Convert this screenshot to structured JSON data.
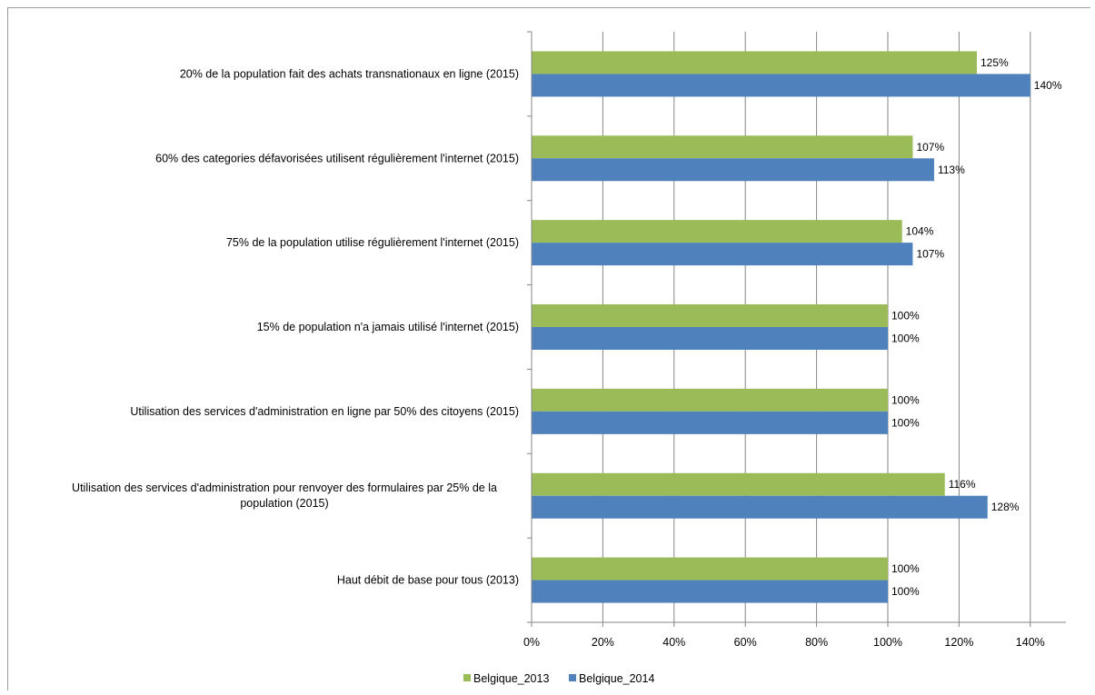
{
  "chart_data": {
    "type": "bar",
    "orientation": "horizontal",
    "categories": [
      "20% de la population fait des achats transnationaux en ligne (2015)",
      "60% des categories défavorisées utilisent régulièrement l'internet (2015)",
      "75% de la population utilise régulièrement l'internet (2015)",
      "15% de population n'a jamais utilisé l'internet (2015)",
      "Utilisation des services d'administration en ligne par 50% des citoyens (2015)",
      "Utilisation des services d'administration pour renvoyer des formulaires par 25% de la population (2015)",
      "Haut débit de base pour tous (2013)"
    ],
    "series": [
      {
        "name": "Belgique_2013",
        "color": "#9bbb59",
        "values": [
          125,
          107,
          104,
          100,
          100,
          116,
          100
        ],
        "labels": [
          "125%",
          "107%",
          "104%",
          "100%",
          "100%",
          "116%",
          "100%"
        ]
      },
      {
        "name": "Belgique_2014",
        "color": "#4f81bd",
        "values": [
          140,
          113,
          107,
          100,
          100,
          128,
          100
        ],
        "labels": [
          "140%",
          "113%",
          "107%",
          "100%",
          "100%",
          "128%",
          "100%"
        ]
      }
    ],
    "xlim": [
      0,
      150
    ],
    "ticks": [
      0,
      20,
      40,
      60,
      80,
      100,
      120,
      140
    ],
    "tick_labels": [
      "0%",
      "20%",
      "40%",
      "60%",
      "80%",
      "100%",
      "120%",
      "140%"
    ],
    "grid": true,
    "legend_position": "bottom",
    "title": "",
    "xlabel": "",
    "ylabel": ""
  }
}
